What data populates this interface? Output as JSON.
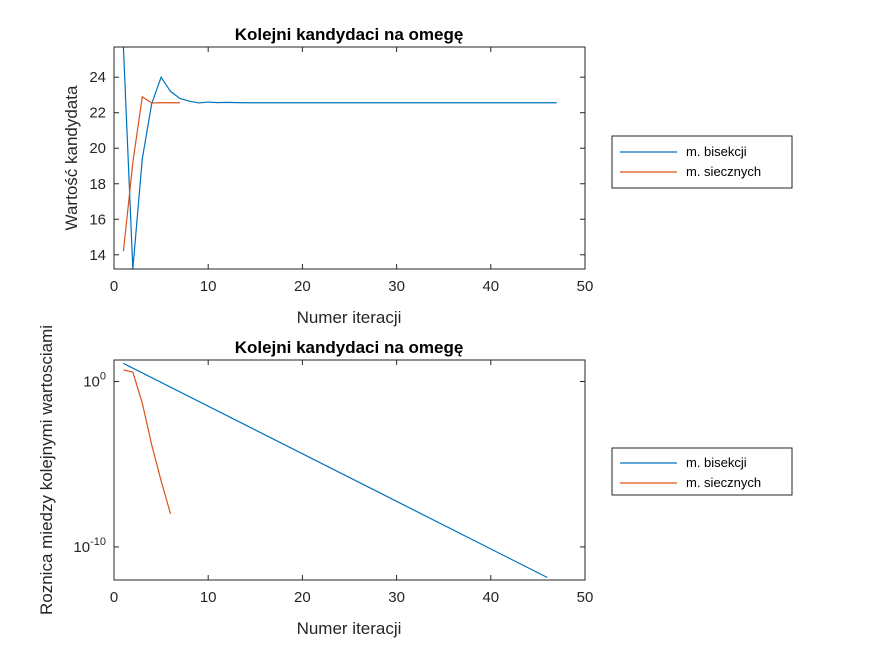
{
  "chart_data": [
    {
      "type": "line",
      "title": "Kolejni kandydaci na omegę",
      "xlabel": "Numer iteracji",
      "ylabel": "Wartość kandydata",
      "xlim": [
        0,
        50
      ],
      "ylim": [
        13.2,
        25.7
      ],
      "yscale": "linear",
      "xticks": [
        0,
        10,
        20,
        30,
        40,
        50
      ],
      "yticks": [
        14,
        16,
        18,
        20,
        22,
        24
      ],
      "grid": false,
      "legend_position": "outside-right",
      "series": [
        {
          "name": "m. bisekcji",
          "color": "#0072BD",
          "x": [
            1,
            2,
            3,
            4,
            5,
            6,
            7,
            8,
            9,
            10,
            11,
            12,
            13,
            14,
            15,
            20,
            25,
            30,
            35,
            40,
            45,
            47
          ],
          "y": [
            25.7,
            13.2,
            19.4,
            22.5,
            24.0,
            23.2,
            22.8,
            22.65,
            22.55,
            22.6,
            22.57,
            22.58,
            22.57,
            22.56,
            22.56,
            22.56,
            22.56,
            22.56,
            22.56,
            22.56,
            22.56,
            22.56
          ]
        },
        {
          "name": "m. siecznych",
          "color": "#D95319",
          "x": [
            1,
            2,
            3,
            4,
            5,
            6,
            7
          ],
          "y": [
            14.2,
            19.2,
            22.9,
            22.55,
            22.56,
            22.56,
            22.56
          ]
        }
      ]
    },
    {
      "type": "line",
      "title": "Kolejni kandydaci na omegę",
      "xlabel": "Numer iteracji",
      "ylabel": "Roznica miedzy kolejnymi wartosciami",
      "xlim": [
        0,
        50
      ],
      "ylim_exponent": [
        -12,
        1.3
      ],
      "yscale": "log",
      "xticks": [
        0,
        10,
        20,
        30,
        40,
        50
      ],
      "yticks": [
        {
          "base": "10",
          "exp": "0",
          "value": 1
        },
        {
          "base": "10",
          "exp": "-10",
          "value": 1e-10
        }
      ],
      "grid": false,
      "legend_position": "outside-right",
      "series": [
        {
          "name": "m. bisekcji",
          "color": "#0072BD",
          "x": [
            1,
            46
          ],
          "y": [
            12.5,
            1.42e-12
          ]
        },
        {
          "name": "m. siecznych",
          "color": "#D95319",
          "x": [
            1,
            2,
            3,
            4,
            5,
            6
          ],
          "y": [
            5.0,
            3.7,
            0.05,
            0.00015,
            1e-06,
            1e-08
          ]
        }
      ]
    }
  ]
}
